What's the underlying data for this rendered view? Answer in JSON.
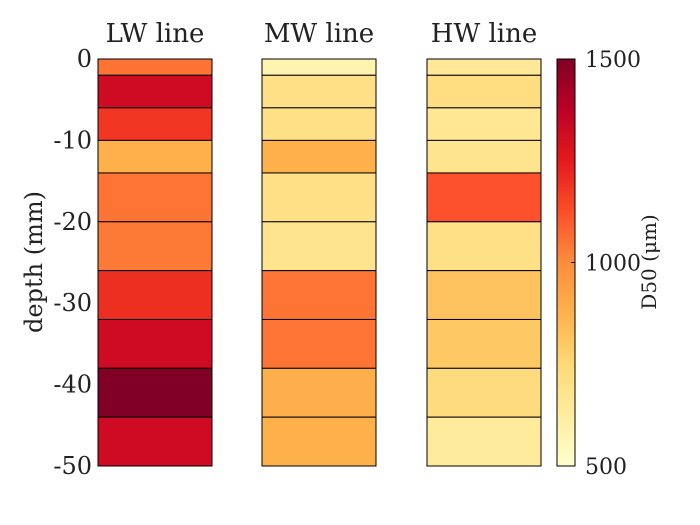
{
  "chart_data": {
    "type": "heatmap",
    "ylabel": "depth (mm)",
    "ylim": [
      -50,
      0
    ],
    "yticks": [
      0,
      -10,
      -20,
      -30,
      -40,
      -50
    ],
    "ytick_labels": [
      "0",
      "-10",
      "-20",
      "-30",
      "-40",
      "-50"
    ],
    "colorbar": {
      "label": "D50 (μm)",
      "range": [
        500,
        1500
      ],
      "ticks": [
        500,
        1000,
        1500
      ],
      "tick_labels": [
        "500",
        "1000",
        "1500"
      ],
      "colormap": "YlOrRd"
    },
    "columns": [
      {
        "title": "LW line",
        "layers": [
          {
            "top": 0,
            "bottom": -2,
            "d50": 1050
          },
          {
            "top": -2,
            "bottom": -6,
            "d50": 1320
          },
          {
            "top": -6,
            "bottom": -10,
            "d50": 1180
          },
          {
            "top": -10,
            "bottom": -14,
            "d50": 880
          },
          {
            "top": -14,
            "bottom": -20,
            "d50": 1050
          },
          {
            "top": -20,
            "bottom": -26,
            "d50": 1040
          },
          {
            "top": -26,
            "bottom": -32,
            "d50": 1200
          },
          {
            "top": -32,
            "bottom": -38,
            "d50": 1320
          },
          {
            "top": -38,
            "bottom": -44,
            "d50": 1500
          },
          {
            "top": -44,
            "bottom": -50,
            "d50": 1320
          }
        ]
      },
      {
        "title": "MW line",
        "layers": [
          {
            "top": 0,
            "bottom": -2,
            "d50": 580
          },
          {
            "top": -2,
            "bottom": -6,
            "d50": 700
          },
          {
            "top": -6,
            "bottom": -10,
            "d50": 700
          },
          {
            "top": -10,
            "bottom": -14,
            "d50": 880
          },
          {
            "top": -14,
            "bottom": -20,
            "d50": 700
          },
          {
            "top": -20,
            "bottom": -26,
            "d50": 680
          },
          {
            "top": -26,
            "bottom": -32,
            "d50": 1050
          },
          {
            "top": -32,
            "bottom": -38,
            "d50": 1050
          },
          {
            "top": -38,
            "bottom": -44,
            "d50": 890
          },
          {
            "top": -44,
            "bottom": -50,
            "d50": 880
          }
        ]
      },
      {
        "title": "HW line",
        "layers": [
          {
            "top": 0,
            "bottom": -2,
            "d50": 650
          },
          {
            "top": -2,
            "bottom": -6,
            "d50": 720
          },
          {
            "top": -6,
            "bottom": -10,
            "d50": 660
          },
          {
            "top": -10,
            "bottom": -14,
            "d50": 680
          },
          {
            "top": -14,
            "bottom": -20,
            "d50": 1120
          },
          {
            "top": -20,
            "bottom": -26,
            "d50": 700
          },
          {
            "top": -26,
            "bottom": -32,
            "d50": 820
          },
          {
            "top": -32,
            "bottom": -38,
            "d50": 800
          },
          {
            "top": -38,
            "bottom": -44,
            "d50": 730
          },
          {
            "top": -44,
            "bottom": -50,
            "d50": 640
          }
        ]
      }
    ]
  }
}
